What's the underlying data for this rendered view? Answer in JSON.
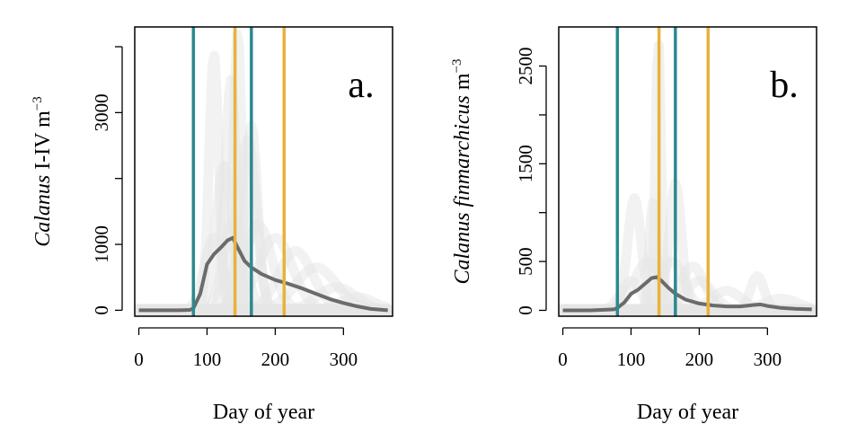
{
  "chart_data": [
    {
      "type": "line",
      "panel_label": "a.",
      "xlabel": "Day of year",
      "ylabel_italic": "Calanus",
      "ylabel_rest": " I-IV m",
      "ylabel_sup": "−3",
      "xlim": [
        -6,
        372
      ],
      "ylim": [
        -90,
        4300
      ],
      "xticks": [
        0,
        100,
        200,
        300
      ],
      "yticks": [
        0,
        1000,
        2000,
        3000,
        4000
      ],
      "ytick_labels": [
        "0",
        "1000",
        "",
        "3000",
        ""
      ],
      "colors": {
        "mean": "#6b6b6b",
        "ensemble": "#c8c8c8",
        "teal": "#2a8a8e",
        "gold": "#e8b23a"
      },
      "vlines": [
        {
          "x": 80,
          "color": "teal"
        },
        {
          "x": 165,
          "color": "teal"
        },
        {
          "x": 141,
          "color": "gold"
        },
        {
          "x": 213,
          "color": "gold"
        }
      ],
      "peaks": [
        {
          "x": 110,
          "y": 3900,
          "w": 7
        },
        {
          "x": 135,
          "y": 3500,
          "w": 8
        },
        {
          "x": 145,
          "y": 4250,
          "w": 6
        },
        {
          "x": 165,
          "y": 2800,
          "w": 9
        },
        {
          "x": 160,
          "y": 2600,
          "w": 12
        },
        {
          "x": 125,
          "y": 2200,
          "w": 12
        },
        {
          "x": 140,
          "y": 1400,
          "w": 15
        },
        {
          "x": 175,
          "y": 1300,
          "w": 20
        },
        {
          "x": 200,
          "y": 1100,
          "w": 25
        },
        {
          "x": 230,
          "y": 900,
          "w": 25
        },
        {
          "x": 260,
          "y": 650,
          "w": 30
        },
        {
          "x": 110,
          "y": 1100,
          "w": 14
        },
        {
          "x": 290,
          "y": 350,
          "w": 28
        },
        {
          "x": 320,
          "y": 200,
          "w": 25
        }
      ],
      "series": [
        {
          "x": [
            0,
            20,
            40,
            60,
            75,
            80,
            90,
            100,
            110,
            120,
            130,
            138,
            145,
            155,
            165,
            180,
            200,
            220,
            240,
            260,
            280,
            300,
            320,
            340,
            365
          ],
          "y": [
            0,
            0,
            0,
            0,
            5,
            30,
            250,
            700,
            850,
            950,
            1060,
            1100,
            950,
            750,
            650,
            550,
            460,
            400,
            330,
            250,
            170,
            110,
            60,
            20,
            0
          ]
        }
      ]
    },
    {
      "type": "line",
      "panel_label": "b.",
      "xlabel": "Day of year",
      "ylabel_italic": "Calanus finmarchicus",
      "ylabel_rest": " m",
      "ylabel_sup": "−3",
      "xlim": [
        -6,
        372
      ],
      "ylim": [
        -60,
        2900
      ],
      "xticks": [
        0,
        100,
        200,
        300
      ],
      "yticks": [
        0,
        500,
        1000,
        1500,
        2000,
        2500
      ],
      "ytick_labels": [
        "0",
        "500",
        "",
        "1500",
        "",
        "2500"
      ],
      "colors": {
        "mean": "#6b6b6b",
        "ensemble": "#c8c8c8",
        "teal": "#2a8a8e",
        "gold": "#e8b23a"
      },
      "vlines": [
        {
          "x": 80,
          "color": "teal"
        },
        {
          "x": 165,
          "color": "teal"
        },
        {
          "x": 141,
          "color": "gold"
        },
        {
          "x": 213,
          "color": "gold"
        }
      ],
      "peaks": [
        {
          "x": 140,
          "y": 2800,
          "w": 4
        },
        {
          "x": 165,
          "y": 1300,
          "w": 9
        },
        {
          "x": 105,
          "y": 1150,
          "w": 10
        },
        {
          "x": 132,
          "y": 1100,
          "w": 5
        },
        {
          "x": 125,
          "y": 500,
          "w": 20
        },
        {
          "x": 160,
          "y": 500,
          "w": 18
        },
        {
          "x": 190,
          "y": 450,
          "w": 18
        },
        {
          "x": 200,
          "y": 300,
          "w": 20
        },
        {
          "x": 240,
          "y": 200,
          "w": 22
        },
        {
          "x": 285,
          "y": 350,
          "w": 10
        },
        {
          "x": 320,
          "y": 120,
          "w": 25
        },
        {
          "x": 100,
          "y": 300,
          "w": 15
        }
      ],
      "series": [
        {
          "x": [
            0,
            20,
            40,
            60,
            75,
            80,
            90,
            100,
            110,
            120,
            130,
            138,
            145,
            155,
            165,
            180,
            200,
            220,
            240,
            260,
            280,
            290,
            300,
            320,
            340,
            365
          ],
          "y": [
            0,
            0,
            0,
            5,
            10,
            25,
            80,
            170,
            210,
            270,
            330,
            340,
            300,
            230,
            170,
            110,
            70,
            50,
            40,
            40,
            55,
            60,
            45,
            25,
            15,
            10
          ]
        }
      ]
    }
  ]
}
